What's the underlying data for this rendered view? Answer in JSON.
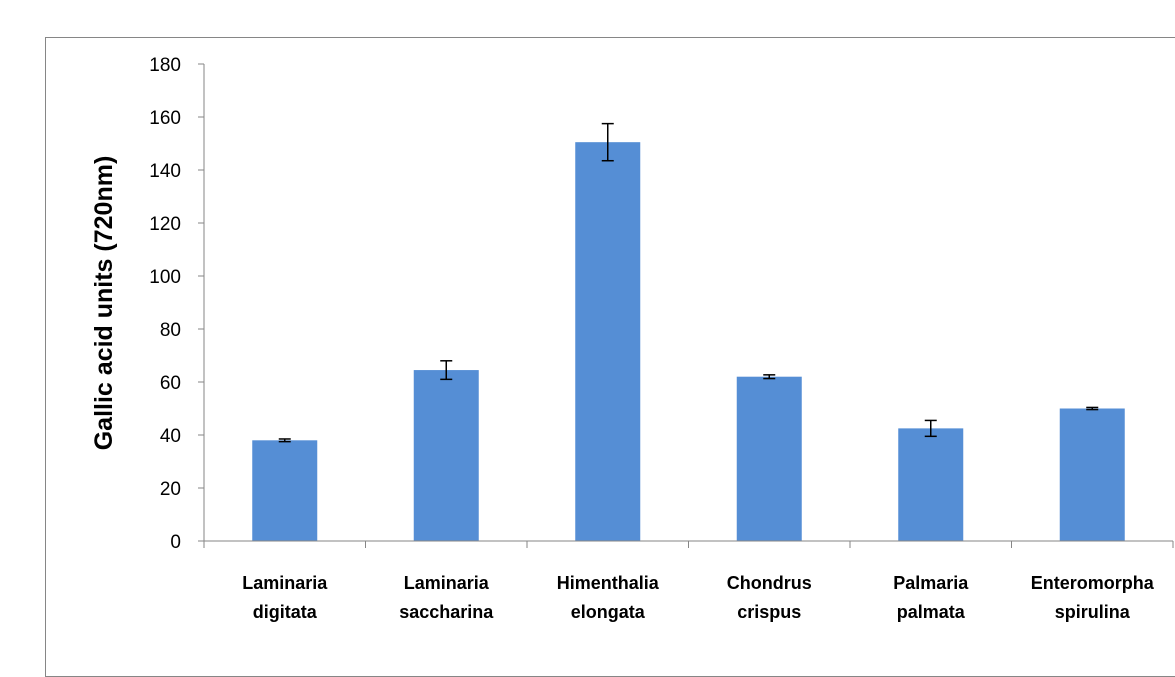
{
  "chart_data": {
    "type": "bar",
    "title": "",
    "xlabel": "",
    "ylabel": "Gallic acid units (720nm)",
    "ylim": [
      0,
      180
    ],
    "yticks": [
      0,
      20,
      40,
      60,
      80,
      100,
      120,
      140,
      160,
      180
    ],
    "categories": [
      [
        "Laminaria",
        "digitata"
      ],
      [
        "Laminaria",
        "saccharina"
      ],
      [
        "Himenthalia",
        "elongata"
      ],
      [
        "Chondrus",
        "crispus"
      ],
      [
        "Palmaria",
        "palmata"
      ],
      [
        "Enteromorpha",
        "spirulina"
      ]
    ],
    "values": [
      38,
      64.5,
      150.5,
      62,
      42.5,
      50
    ],
    "errors": [
      0.5,
      3.5,
      7,
      0.7,
      3,
      0.4
    ],
    "bar_color": "#558ED5",
    "grid": false,
    "legend": "none"
  }
}
